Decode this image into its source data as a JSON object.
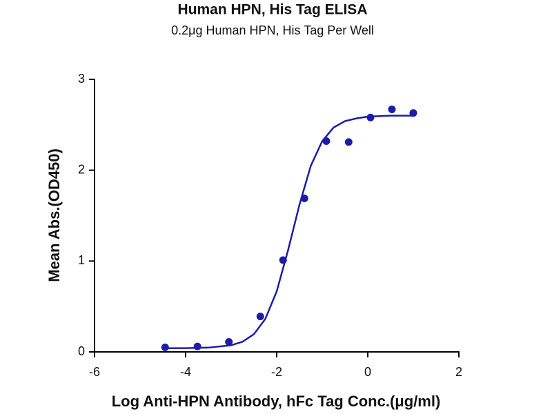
{
  "chart_data": {
    "type": "scatter",
    "title": "Human HPN, His Tag ELISA",
    "subtitle": "0.2μg Human HPN, His Tag Per Well",
    "x_label": "Log Anti-HPN Antibody, hFc Tag Conc.(μg/ml)",
    "y_label": "Mean Abs.(OD450)",
    "xlim": [
      -6,
      2
    ],
    "xticks": [
      -6,
      -4,
      -2,
      0,
      2
    ],
    "ylim": [
      0,
      3
    ],
    "yticks": [
      0,
      1,
      2,
      3
    ],
    "grid": false,
    "series": [
      {
        "kind": "points",
        "color": "#1c1ca8",
        "x": [
          -4.45,
          -3.74,
          -3.05,
          -2.36,
          -1.86,
          -1.39,
          -0.91,
          -0.42,
          0.06,
          0.53,
          1.0
        ],
        "values": [
          0.05,
          0.06,
          0.11,
          0.39,
          1.01,
          1.69,
          2.32,
          2.31,
          2.58,
          2.67,
          2.63
        ]
      },
      {
        "kind": "curve",
        "color": "#1c1ca8",
        "x": [
          -4.5,
          -4.0,
          -3.5,
          -3.0,
          -2.75,
          -2.5,
          -2.25,
          -2.0,
          -1.75,
          -1.5,
          -1.25,
          -1.0,
          -0.75,
          -0.5,
          -0.25,
          0,
          0.5,
          1.0
        ],
        "values": [
          0.04,
          0.041,
          0.047,
          0.073,
          0.112,
          0.195,
          0.363,
          0.666,
          1.12,
          1.62,
          2.05,
          2.32,
          2.47,
          2.54,
          2.57,
          2.59,
          2.6,
          2.6
        ]
      }
    ]
  }
}
